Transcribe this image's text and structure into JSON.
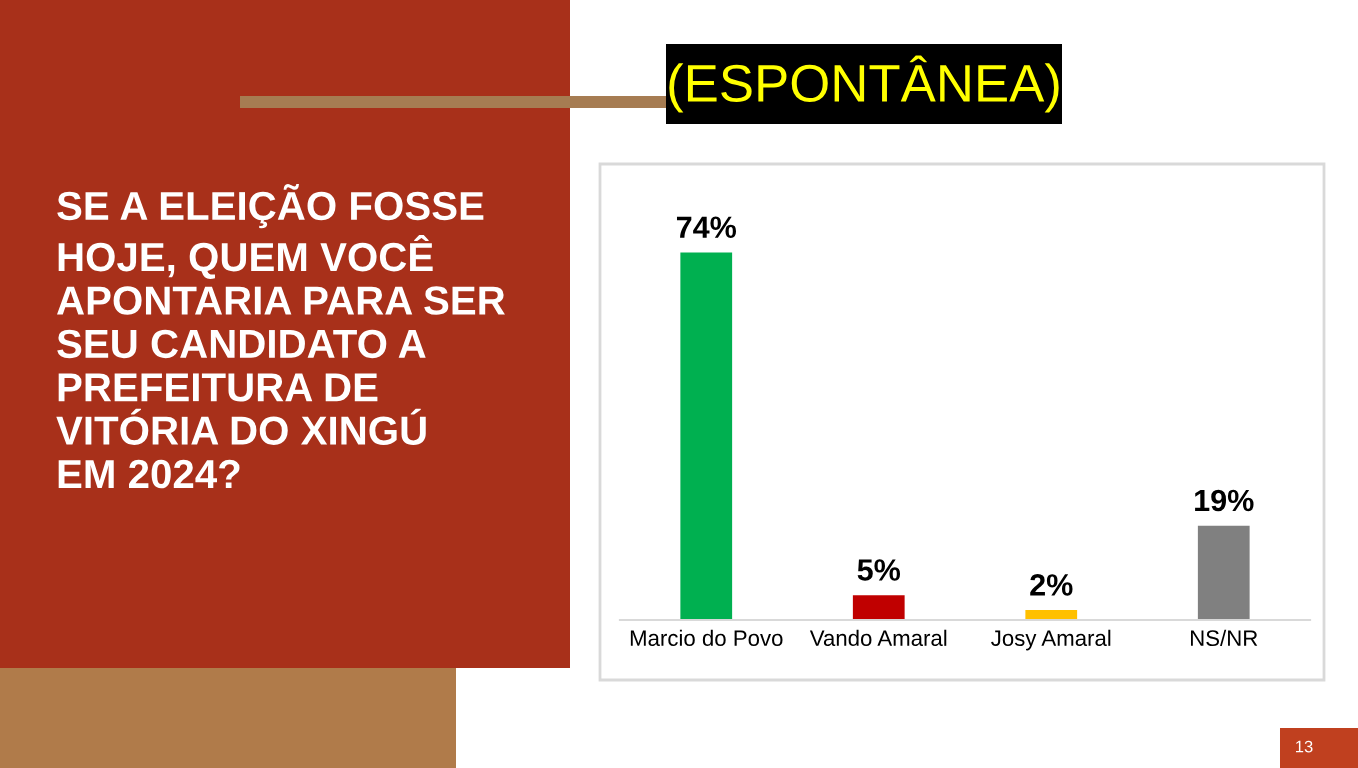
{
  "chart_data": {
    "type": "bar",
    "title": "(ESPONTÂNEA)",
    "subtitle": "SE A ELEIÇÃO FOSSE\nHOJE, QUEM VOCÊ\nAPONTARIA PARA SER\nSEU CANDIDATO A\nPREFEITURA DE\nVITÓRIA DO XINGÚ\nEM 2024?",
    "categories": [
      "Marcio do Povo",
      "Vando Amaral",
      "Josy Amaral",
      "NS/NR"
    ],
    "values": [
      74,
      5,
      2,
      19
    ],
    "colors": [
      "#00b050",
      "#c00000",
      "#ffc000",
      "#808080"
    ],
    "value_labels": [
      "74%",
      "5%",
      "2%",
      "19%"
    ],
    "annotations": [
      "13"
    ]
  }
}
